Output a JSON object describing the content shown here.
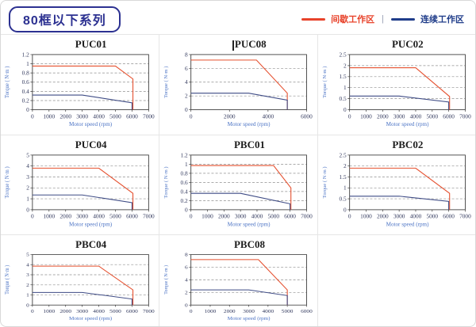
{
  "header": {
    "title": "80框以下系列",
    "legend": {
      "intermittent_label": "间歇工作区",
      "separator": "|",
      "continuous_label": "连续工作区"
    }
  },
  "colors": {
    "intermittent": "#e5502f",
    "continuous": "#3e4b85",
    "legend_red": "#e8432b",
    "legend_navy": "#203d8a",
    "header_navy": "#2c3191",
    "tick_text": "#333a5e",
    "axis_label": "#4a72c4",
    "frame": "#3d3d3d",
    "grid": "#8f8f8f"
  },
  "chart_data": [
    {
      "type": "line",
      "title": "PUC01",
      "caret": false,
      "xlabel": "Motor speed (rpm)",
      "ylabel": "Torque ( N·m )",
      "xlim": [
        0,
        7000
      ],
      "xticks": [
        0,
        1000,
        2000,
        3000,
        4000,
        5000,
        6000,
        7000
      ],
      "ylim": [
        0,
        1.2
      ],
      "yticks": [
        0,
        0.2,
        0.4,
        0.6,
        0.8,
        1,
        1.2
      ],
      "grid": "horizontal-dashed",
      "legend_position": "none",
      "series": [
        {
          "name": "间歇工作区",
          "color_key": "intermittent",
          "points": [
            [
              0,
              0.95
            ],
            [
              5000,
              0.95
            ],
            [
              6050,
              0.67
            ],
            [
              6050,
              0
            ]
          ]
        },
        {
          "name": "连续工作区",
          "color_key": "continuous",
          "points": [
            [
              0,
              0.32
            ],
            [
              3000,
              0.32
            ],
            [
              6000,
              0.15
            ],
            [
              6000,
              0
            ]
          ]
        }
      ]
    },
    {
      "type": "line",
      "title": "PUC08",
      "caret": true,
      "xlabel": "Motor speed (rpm)",
      "ylabel": "Torque ( N·m )",
      "xlim": [
        0,
        6000
      ],
      "xticks": [
        0,
        2000,
        4000,
        6000
      ],
      "ylim": [
        0,
        8
      ],
      "yticks": [
        0,
        2,
        4,
        6,
        8
      ],
      "grid": "horizontal-dashed",
      "legend_position": "none",
      "series": [
        {
          "name": "间歇工作区",
          "color_key": "intermittent",
          "points": [
            [
              0,
              7.2
            ],
            [
              3400,
              7.2
            ],
            [
              5000,
              2.4
            ],
            [
              5000,
              0
            ]
          ]
        },
        {
          "name": "连续工作区",
          "color_key": "continuous",
          "points": [
            [
              0,
              2.4
            ],
            [
              3000,
              2.4
            ],
            [
              5000,
              1.4
            ],
            [
              5000,
              0
            ]
          ]
        }
      ]
    },
    {
      "type": "line",
      "title": "PUC02",
      "caret": false,
      "xlabel": "Motor speed (rpm)",
      "ylabel": "Torque ( N·m )",
      "xlim": [
        0,
        7000
      ],
      "xticks": [
        0,
        1000,
        2000,
        3000,
        4000,
        5000,
        6000,
        7000
      ],
      "ylim": [
        0,
        2.5
      ],
      "yticks": [
        0,
        0.5,
        1,
        1.5,
        2,
        2.5
      ],
      "grid": "horizontal-dashed",
      "legend_position": "none",
      "series": [
        {
          "name": "间歇工作区",
          "color_key": "intermittent",
          "points": [
            [
              0,
              1.9
            ],
            [
              4000,
              1.9
            ],
            [
              6050,
              0.6
            ],
            [
              6050,
              0
            ]
          ]
        },
        {
          "name": "连续工作区",
          "color_key": "continuous",
          "points": [
            [
              0,
              0.62
            ],
            [
              3000,
              0.62
            ],
            [
              6000,
              0.35
            ],
            [
              6000,
              0
            ]
          ]
        }
      ]
    },
    {
      "type": "line",
      "title": "PUC04",
      "caret": false,
      "xlabel": "Motor speed (rpm)",
      "ylabel": "Torque ( N·m )",
      "xlim": [
        0,
        7000
      ],
      "xticks": [
        0,
        1000,
        2000,
        3000,
        4000,
        5000,
        6000,
        7000
      ],
      "ylim": [
        0,
        5
      ],
      "yticks": [
        0,
        1,
        2,
        3,
        4,
        5
      ],
      "grid": "horizontal-dashed",
      "legend_position": "none",
      "series": [
        {
          "name": "间歇工作区",
          "color_key": "intermittent",
          "points": [
            [
              0,
              3.8
            ],
            [
              4000,
              3.8
            ],
            [
              6050,
              1.5
            ],
            [
              6050,
              0
            ]
          ]
        },
        {
          "name": "连续工作区",
          "color_key": "continuous",
          "points": [
            [
              0,
              1.35
            ],
            [
              3000,
              1.35
            ],
            [
              6000,
              0.65
            ],
            [
              6000,
              0
            ]
          ]
        }
      ]
    },
    {
      "type": "line",
      "title": "PBC01",
      "caret": false,
      "xlabel": "Motor speed (rpm)",
      "ylabel": "Torque ( N·m )",
      "xlim": [
        0,
        7000
      ],
      "xticks": [
        0,
        1000,
        2000,
        3000,
        4000,
        5000,
        6000,
        7000
      ],
      "ylim": [
        0,
        1.2
      ],
      "yticks": [
        0,
        0.2,
        0.4,
        0.6,
        0.8,
        1,
        1.2
      ],
      "grid": "horizontal-dashed",
      "legend_position": "none",
      "series": [
        {
          "name": "间歇工作区",
          "color_key": "intermittent",
          "points": [
            [
              0,
              0.97
            ],
            [
              5000,
              0.97
            ],
            [
              6050,
              0.48
            ],
            [
              6050,
              0
            ]
          ]
        },
        {
          "name": "连续工作区",
          "color_key": "continuous",
          "points": [
            [
              0,
              0.36
            ],
            [
              3000,
              0.36
            ],
            [
              6000,
              0.13
            ],
            [
              6000,
              0
            ]
          ]
        }
      ]
    },
    {
      "type": "line",
      "title": "PBC02",
      "caret": false,
      "xlabel": "Motor speed (rpm)",
      "ylabel": "Torque ( N·m )",
      "xlim": [
        0,
        7000
      ],
      "xticks": [
        0,
        1000,
        2000,
        3000,
        4000,
        5000,
        6000,
        7000
      ],
      "ylim": [
        0,
        2.5
      ],
      "yticks": [
        0,
        0.5,
        1,
        1.5,
        2,
        2.5
      ],
      "grid": "horizontal-dashed",
      "legend_position": "none",
      "series": [
        {
          "name": "间歇工作区",
          "color_key": "intermittent",
          "points": [
            [
              0,
              1.9
            ],
            [
              4000,
              1.9
            ],
            [
              6050,
              0.75
            ],
            [
              6050,
              0
            ]
          ]
        },
        {
          "name": "连续工作区",
          "color_key": "continuous",
          "points": [
            [
              0,
              0.62
            ],
            [
              3000,
              0.62
            ],
            [
              6000,
              0.38
            ],
            [
              6000,
              0
            ]
          ]
        }
      ]
    },
    {
      "type": "line",
      "title": "PBC04",
      "caret": false,
      "xlabel": "Motor speed (rpm)",
      "ylabel": "Torque ( N·m )",
      "xlim": [
        0,
        7000
      ],
      "xticks": [
        0,
        1000,
        2000,
        3000,
        4000,
        5000,
        6000,
        7000
      ],
      "ylim": [
        0,
        5
      ],
      "yticks": [
        0,
        1,
        2,
        3,
        4,
        5
      ],
      "grid": "horizontal-dashed",
      "legend_position": "none",
      "series": [
        {
          "name": "间歇工作区",
          "color_key": "intermittent",
          "points": [
            [
              0,
              3.85
            ],
            [
              4000,
              3.85
            ],
            [
              6050,
              1.5
            ],
            [
              6050,
              0
            ]
          ]
        },
        {
          "name": "连续工作区",
          "color_key": "continuous",
          "points": [
            [
              0,
              1.25
            ],
            [
              3000,
              1.25
            ],
            [
              6000,
              0.6
            ],
            [
              6000,
              0
            ]
          ]
        }
      ]
    },
    {
      "type": "line",
      "title": "PBC08",
      "caret": false,
      "xlabel": "Motor speed (rpm)",
      "ylabel": "Torque ( N·m )",
      "xlim": [
        0,
        6000
      ],
      "xticks": [
        0,
        1000,
        2000,
        3000,
        4000,
        5000,
        6000
      ],
      "ylim": [
        0,
        8
      ],
      "yticks": [
        0,
        2,
        4,
        6,
        8
      ],
      "grid": "horizontal-dashed",
      "legend_position": "none",
      "series": [
        {
          "name": "间歇工作区",
          "color_key": "intermittent",
          "points": [
            [
              0,
              7.2
            ],
            [
              3500,
              7.2
            ],
            [
              5000,
              2.4
            ],
            [
              5000,
              0
            ]
          ]
        },
        {
          "name": "连续工作区",
          "color_key": "continuous",
          "points": [
            [
              0,
              2.4
            ],
            [
              3000,
              2.4
            ],
            [
              5000,
              1.5
            ],
            [
              5000,
              0
            ]
          ]
        }
      ]
    }
  ]
}
